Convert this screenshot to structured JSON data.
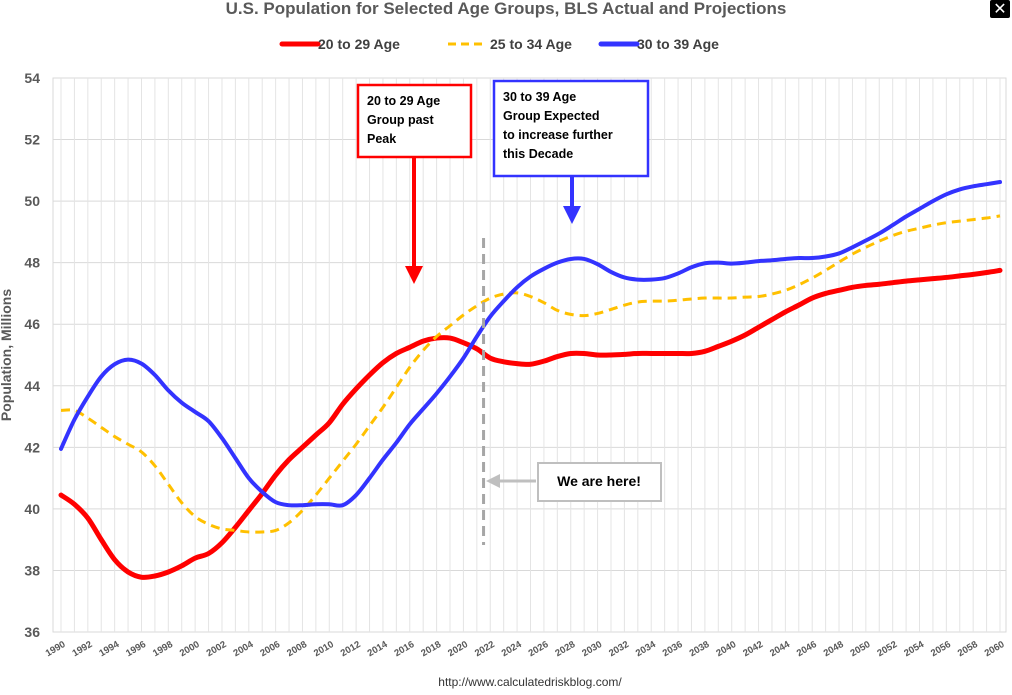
{
  "chart_data": {
    "type": "line",
    "title": "U.S. Population for Selected Age Groups, BLS Actual and Projections",
    "ylabel": "Population, Millions",
    "xlabel": "",
    "xlim": [
      1990,
      2060
    ],
    "ylim": [
      36,
      54
    ],
    "y_ticks": [
      "36",
      "38",
      "40",
      "42",
      "44",
      "46",
      "48",
      "50",
      "52",
      "54"
    ],
    "x_ticks": [
      "1990",
      "1992",
      "1994",
      "1996",
      "1998",
      "2000",
      "2002",
      "2004",
      "2006",
      "2008",
      "2010",
      "2012",
      "2014",
      "2016",
      "2018",
      "2020",
      "2022",
      "2024",
      "2026",
      "2028",
      "2030",
      "2032",
      "2034",
      "2036",
      "2038",
      "2040",
      "2042",
      "2044",
      "2046",
      "2048",
      "2050",
      "2052",
      "2054",
      "2056",
      "2058",
      "2060"
    ],
    "grid": true,
    "legend_position": "top",
    "series": [
      {
        "name": "20 to 29 Age",
        "color": "#ff0000",
        "style": "solid",
        "x": [
          1990,
          1991,
          1992,
          1993,
          1994,
          1995,
          1996,
          1997,
          1998,
          1999,
          2000,
          2001,
          2002,
          2003,
          2004,
          2005,
          2006,
          2007,
          2008,
          2009,
          2010,
          2011,
          2012,
          2013,
          2014,
          2015,
          2016,
          2017,
          2018,
          2019,
          2020,
          2021,
          2022,
          2023,
          2024,
          2025,
          2026,
          2027,
          2028,
          2029,
          2030,
          2031,
          2032,
          2033,
          2034,
          2035,
          2036,
          2037,
          2038,
          2039,
          2040,
          2041,
          2042,
          2043,
          2044,
          2045,
          2046,
          2047,
          2048,
          2049,
          2050,
          2051,
          2052,
          2053,
          2054,
          2055,
          2056,
          2057,
          2058,
          2059,
          2060
        ],
        "values": [
          40.45,
          40.15,
          39.7,
          39.0,
          38.35,
          37.95,
          37.78,
          37.82,
          37.95,
          38.15,
          38.4,
          38.55,
          38.9,
          39.4,
          39.95,
          40.5,
          41.1,
          41.6,
          42.0,
          42.4,
          42.8,
          43.4,
          43.9,
          44.35,
          44.75,
          45.05,
          45.25,
          45.45,
          45.55,
          45.55,
          45.4,
          45.2,
          44.9,
          44.78,
          44.72,
          44.7,
          44.8,
          44.95,
          45.05,
          45.05,
          45.0,
          45.0,
          45.02,
          45.05,
          45.05,
          45.05,
          45.05,
          45.05,
          45.12,
          45.28,
          45.45,
          45.65,
          45.9,
          46.15,
          46.4,
          46.62,
          46.85,
          47.0,
          47.1,
          47.2,
          47.26,
          47.3,
          47.35,
          47.4,
          47.44,
          47.48,
          47.52,
          47.57,
          47.62,
          47.68,
          47.75
        ]
      },
      {
        "name": "25 to 34 Age",
        "color": "#ffc000",
        "style": "dashed",
        "x": [
          1990,
          1991,
          1992,
          1993,
          1994,
          1995,
          1996,
          1997,
          1998,
          1999,
          2000,
          2001,
          2002,
          2003,
          2004,
          2005,
          2006,
          2007,
          2008,
          2009,
          2010,
          2011,
          2012,
          2013,
          2014,
          2015,
          2016,
          2017,
          2018,
          2019,
          2020,
          2021,
          2022,
          2023,
          2024,
          2025,
          2026,
          2027,
          2028,
          2029,
          2030,
          2031,
          2032,
          2033,
          2034,
          2035,
          2036,
          2037,
          2038,
          2039,
          2040,
          2041,
          2042,
          2043,
          2044,
          2045,
          2046,
          2047,
          2048,
          2049,
          2050,
          2051,
          2052,
          2053,
          2054,
          2055,
          2056,
          2057,
          2058,
          2059,
          2060
        ],
        "values": [
          43.2,
          43.2,
          42.95,
          42.65,
          42.35,
          42.1,
          41.85,
          41.4,
          40.8,
          40.2,
          39.75,
          39.5,
          39.35,
          39.3,
          39.25,
          39.25,
          39.3,
          39.55,
          39.95,
          40.45,
          41.0,
          41.55,
          42.1,
          42.7,
          43.3,
          43.95,
          44.6,
          45.15,
          45.6,
          45.95,
          46.3,
          46.6,
          46.85,
          46.98,
          47.02,
          46.9,
          46.7,
          46.45,
          46.32,
          46.28,
          46.35,
          46.48,
          46.62,
          46.72,
          46.75,
          46.75,
          46.78,
          46.82,
          46.85,
          46.85,
          46.85,
          46.88,
          46.9,
          46.98,
          47.1,
          47.28,
          47.5,
          47.75,
          48.02,
          48.28,
          48.5,
          48.7,
          48.88,
          49.02,
          49.12,
          49.22,
          49.3,
          49.35,
          49.4,
          49.45,
          49.52
        ]
      },
      {
        "name": "30 to 39 Age",
        "color": "#3333ff",
        "style": "solid",
        "x": [
          1990,
          1991,
          1992,
          1993,
          1994,
          1995,
          1996,
          1997,
          1998,
          1999,
          2000,
          2001,
          2002,
          2003,
          2004,
          2005,
          2006,
          2007,
          2008,
          2009,
          2010,
          2011,
          2012,
          2013,
          2014,
          2015,
          2016,
          2017,
          2018,
          2019,
          2020,
          2021,
          2022,
          2023,
          2024,
          2025,
          2026,
          2027,
          2028,
          2029,
          2030,
          2031,
          2032,
          2033,
          2034,
          2035,
          2036,
          2037,
          2038,
          2039,
          2040,
          2041,
          2042,
          2043,
          2044,
          2045,
          2046,
          2047,
          2048,
          2049,
          2050,
          2051,
          2052,
          2053,
          2054,
          2055,
          2056,
          2057,
          2058,
          2059,
          2060
        ],
        "values": [
          41.95,
          42.9,
          43.65,
          44.3,
          44.7,
          44.85,
          44.72,
          44.35,
          43.85,
          43.45,
          43.15,
          42.85,
          42.3,
          41.65,
          41.0,
          40.55,
          40.22,
          40.12,
          40.12,
          40.15,
          40.15,
          40.12,
          40.45,
          41.0,
          41.6,
          42.15,
          42.75,
          43.25,
          43.75,
          44.3,
          44.9,
          45.6,
          46.25,
          46.75,
          47.2,
          47.55,
          47.8,
          48.0,
          48.12,
          48.12,
          47.95,
          47.7,
          47.52,
          47.45,
          47.45,
          47.5,
          47.65,
          47.85,
          47.98,
          48.0,
          47.97,
          48.0,
          48.05,
          48.08,
          48.12,
          48.15,
          48.15,
          48.2,
          48.3,
          48.5,
          48.72,
          48.95,
          49.22,
          49.5,
          49.75,
          50.0,
          50.22,
          50.38,
          50.48,
          50.55,
          50.62
        ]
      }
    ],
    "annotations": [
      {
        "lines": [
          "20 to 29 Age",
          "Group past",
          "Peak"
        ],
        "color": "#ff0000",
        "arrow_to": [
          2017,
          47.6
        ]
      },
      {
        "lines": [
          "30 to 39 Age",
          "Group Expected",
          "to increase further",
          "this Decade"
        ],
        "color": "#3333ff",
        "arrow_to": [
          2028,
          49.3
        ]
      },
      {
        "lines": [
          "We are here!"
        ],
        "color": "#bfbfbf",
        "marker_year": 2021.5
      }
    ],
    "source": "http://www.calculatedriskblog.com/"
  }
}
